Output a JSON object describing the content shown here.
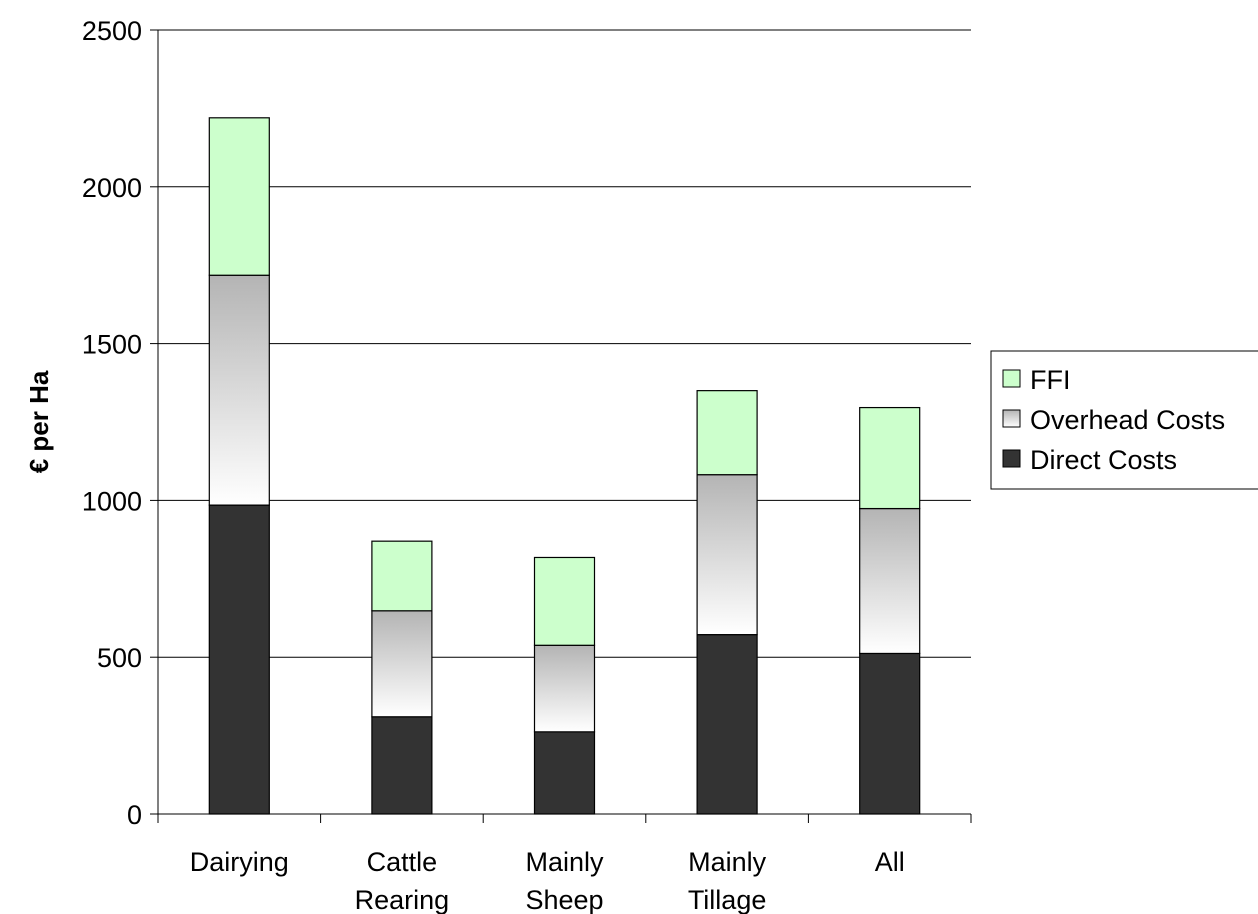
{
  "chart_data": {
    "type": "bar",
    "stacked": true,
    "categories": [
      "Dairying",
      "Cattle Rearing",
      "Mainly Sheep",
      "Mainly Tillage",
      "All"
    ],
    "category_lines": [
      [
        "Dairying"
      ],
      [
        "Cattle",
        "Rearing"
      ],
      [
        "Mainly",
        "Sheep"
      ],
      [
        "Mainly",
        "Tillage"
      ],
      [
        "All"
      ]
    ],
    "series": [
      {
        "name": "Direct Costs",
        "values": [
          985,
          310,
          262,
          572,
          512
        ],
        "color": "#333333"
      },
      {
        "name": "Overhead Costs",
        "values": [
          733,
          338,
          276,
          510,
          462
        ],
        "fill": "gradient",
        "color_top": "#b4b4b4",
        "color_bottom": "#ffffff"
      },
      {
        "name": "FFI",
        "values": [
          502,
          222,
          280,
          268,
          322
        ],
        "color": "#ccffcc"
      }
    ],
    "legend_order": [
      "FFI",
      "Overhead Costs",
      "Direct Costs"
    ],
    "title": "",
    "xlabel": "",
    "ylabel": "€ per Ha",
    "ylim": [
      0,
      2500
    ],
    "yticks": [
      0,
      500,
      1000,
      1500,
      2000,
      2500
    ],
    "grid": true,
    "legend_position": "right"
  }
}
